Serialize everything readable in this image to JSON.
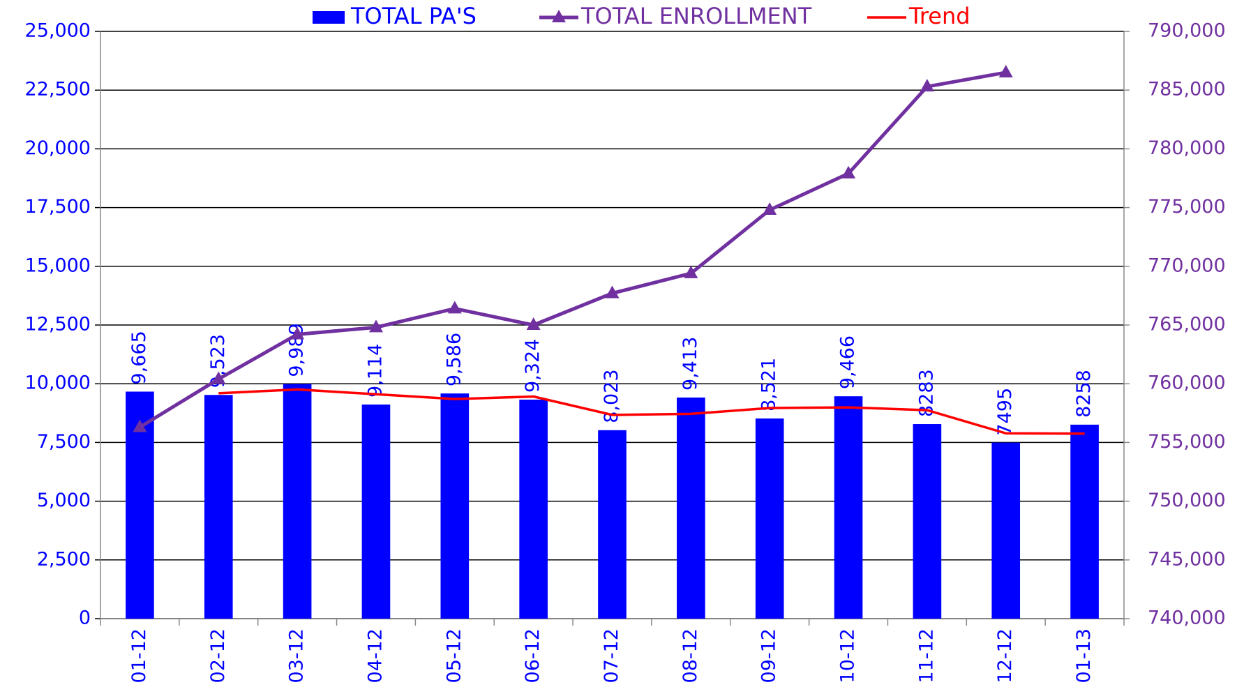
{
  "chart_data": {
    "type": "bar",
    "categories": [
      "01-12",
      "02-12",
      "03-12",
      "04-12",
      "05-12",
      "06-12",
      "07-12",
      "08-12",
      "09-12",
      "10-12",
      "11-12",
      "12-12",
      "01-13"
    ],
    "series": [
      {
        "name": "TOTAL PA'S",
        "type": "bar",
        "color": "#0000ff",
        "values": [
          9665,
          9523,
          9989,
          9114,
          9586,
          9324,
          8023,
          9413,
          8521,
          9466,
          8283,
          7495,
          8258
        ],
        "value_labels": [
          "9,665",
          "9,523",
          "9,989",
          "9,114",
          "9,586",
          "9,324",
          "8,023",
          "9,413",
          "8,521",
          "9,466",
          "8283",
          "7495",
          "8258"
        ]
      },
      {
        "name": "TOTAL ENROLLMENT",
        "type": "line",
        "axis": "y2",
        "marker": "triangle",
        "color": "#7030a0",
        "values": [
          756300,
          760400,
          764200,
          764800,
          766400,
          765000,
          767700,
          769400,
          774800,
          777900,
          785300,
          786500,
          null
        ]
      },
      {
        "name": "Trend",
        "type": "line",
        "color": "#ff0000",
        "values": [
          null,
          9594,
          9756,
          9551.5,
          9350,
          9455,
          8673.5,
          8718,
          8967,
          8993.5,
          8874.5,
          7889,
          7876.5
        ]
      }
    ],
    "ylim": [
      0,
      25000
    ],
    "yticks": [
      0,
      {
        "value": 2500,
        "label": "2,500"
      },
      {
        "value": 5000,
        "label": "5,000"
      },
      {
        "value": 7500,
        "label": "7,500"
      },
      {
        "value": 10000,
        "label": "10,000"
      },
      {
        "value": 12500,
        "label": "12,500"
      },
      {
        "value": 15000,
        "label": "15,000"
      },
      {
        "value": 17500,
        "label": "17,500"
      },
      {
        "value": 20000,
        "label": "20,000"
      },
      {
        "value": 22500,
        "label": "22,500"
      },
      {
        "value": 25000,
        "label": "25,000"
      }
    ],
    "y2lim": [
      740000,
      790000
    ],
    "y2ticks": [
      {
        "value": 740000,
        "label": "740,000"
      },
      {
        "value": 745000,
        "label": "745,000"
      },
      {
        "value": 750000,
        "label": "750,000"
      },
      {
        "value": 755000,
        "label": "755,000"
      },
      {
        "value": 760000,
        "label": "760,000"
      },
      {
        "value": 765000,
        "label": "765,000"
      },
      {
        "value": 770000,
        "label": "770,000"
      },
      {
        "value": 775000,
        "label": "775,000"
      },
      {
        "value": 780000,
        "label": "780,000"
      },
      {
        "value": 785000,
        "label": "785,000"
      },
      {
        "value": 790000,
        "label": "790,000"
      }
    ],
    "grid": true,
    "legend": "top"
  }
}
